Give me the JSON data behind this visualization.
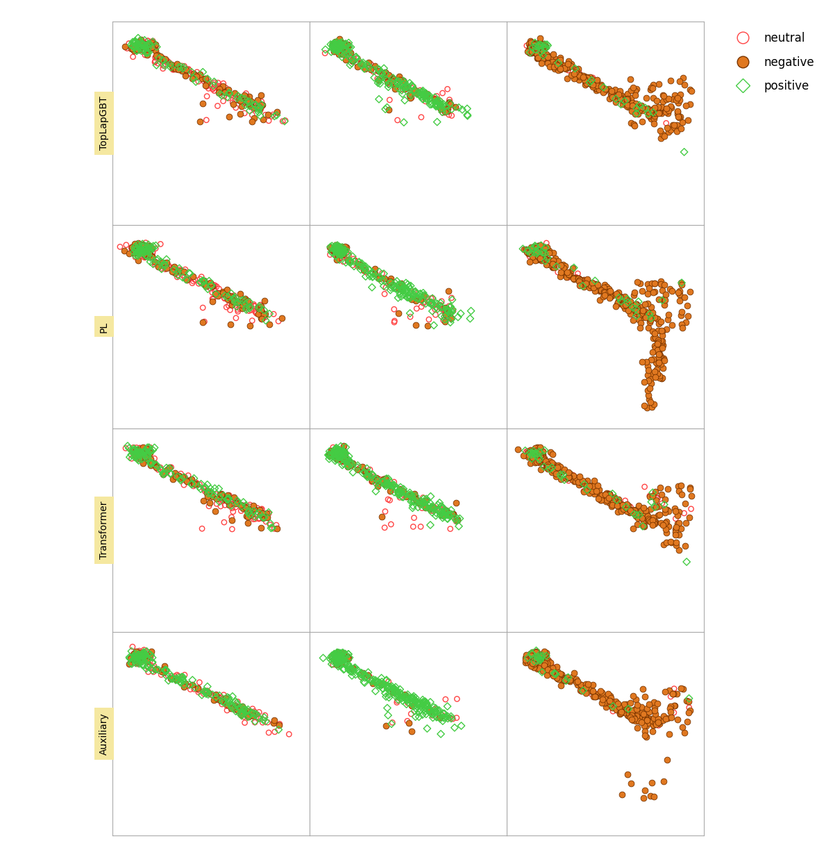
{
  "rows": [
    "TopLapGBT",
    "PL",
    "Transformer",
    "Auxiliary"
  ],
  "col_labels": [
    "neutral",
    "negative",
    "positive"
  ],
  "pred_neutral_color": "#ff4444",
  "pred_negative_color": "#e07820",
  "pred_negative_edge": "#7a3500",
  "pred_positive_color": "#44cc44",
  "row_label_bg": "#f5e8a0",
  "figure_bg": "#ffffff",
  "axes_bg": "#ffffff",
  "marker_size_open": 28,
  "marker_size_filled": 40,
  "marker_lw": 0.8
}
